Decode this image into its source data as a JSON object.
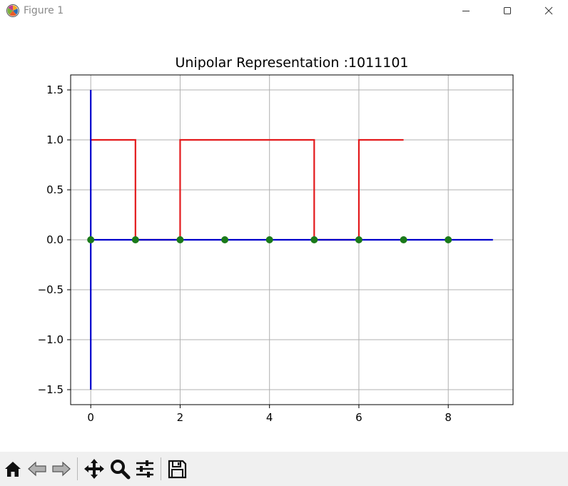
{
  "window": {
    "title": "Figure 1",
    "controls": [
      "minimize",
      "maximize",
      "close"
    ]
  },
  "toolbar": {
    "buttons": [
      {
        "name": "home",
        "icon": "home-icon"
      },
      {
        "name": "back",
        "icon": "arrow-left-icon"
      },
      {
        "name": "forward",
        "icon": "arrow-right-icon"
      },
      {
        "name": "pan",
        "icon": "move-icon"
      },
      {
        "name": "zoom",
        "icon": "magnifier-icon"
      },
      {
        "name": "configure-subplots",
        "icon": "sliders-icon"
      },
      {
        "name": "save",
        "icon": "floppy-disk-icon"
      }
    ]
  },
  "chart_data": {
    "type": "line",
    "title": "Unipolar Representation :1011101",
    "xlabel": "",
    "ylabel": "",
    "xlim": [
      -0.45,
      9.45
    ],
    "ylim": [
      -1.65,
      1.65
    ],
    "xticks": [
      0,
      2,
      4,
      6,
      8
    ],
    "xtick_labels": [
      "0",
      "2",
      "4",
      "6",
      "8"
    ],
    "yticks": [
      -1.5,
      -1.0,
      -0.5,
      0.0,
      0.5,
      1.0,
      1.5
    ],
    "ytick_labels": [
      "−1.5",
      "−1.0",
      "−0.5",
      "0.0",
      "0.5",
      "1.0",
      "1.5"
    ],
    "grid": true,
    "series": [
      {
        "kind": "step",
        "color": "#e31a1c",
        "x": [
          0,
          1,
          1,
          2,
          2,
          5,
          5,
          6,
          6,
          7
        ],
        "y": [
          1,
          1,
          0,
          0,
          1,
          1,
          0,
          0,
          1,
          1
        ]
      },
      {
        "kind": "line",
        "color": "#0000cc",
        "x": [
          0,
          9
        ],
        "y": [
          0,
          0
        ]
      },
      {
        "kind": "line",
        "color": "#0000cc",
        "x": [
          0,
          0
        ],
        "y": [
          -1.5,
          1.5
        ]
      },
      {
        "kind": "scatter",
        "color": "#1a7a1a",
        "x": [
          0,
          1,
          2,
          3,
          4,
          5,
          6,
          7,
          8
        ],
        "y": [
          0,
          0,
          0,
          0,
          0,
          0,
          0,
          0,
          0
        ]
      }
    ]
  }
}
